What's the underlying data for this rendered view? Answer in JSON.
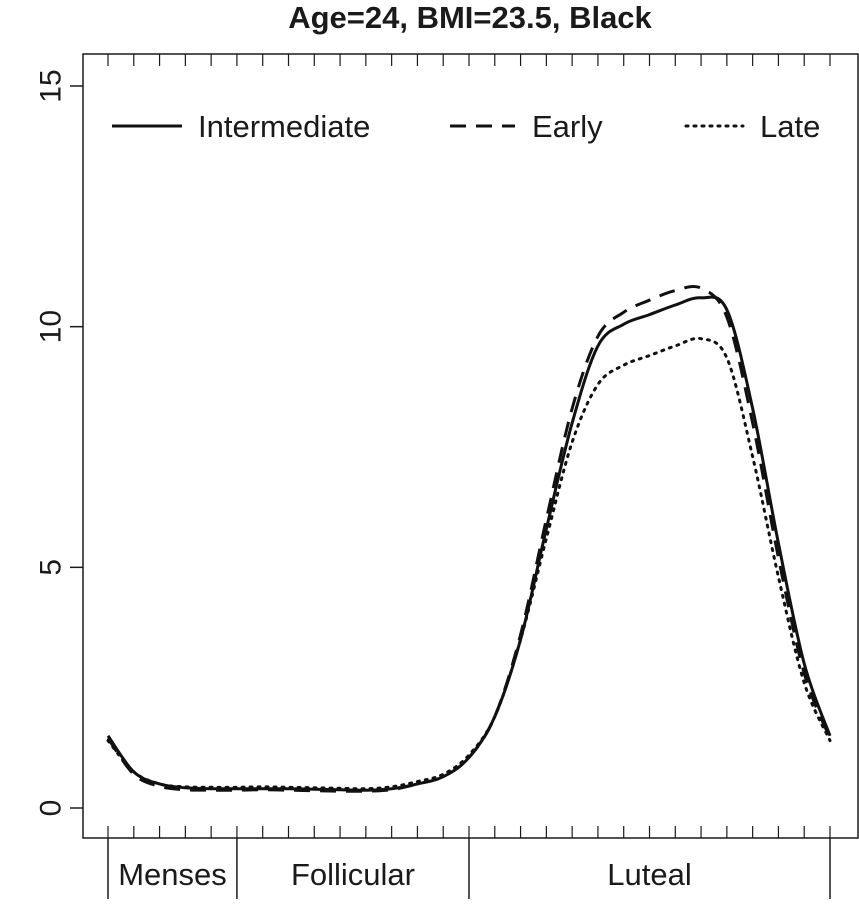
{
  "chart_data": {
    "type": "line",
    "title": "Age=24, BMI=23.5, Black",
    "xlabel": "",
    "ylabel": "",
    "ylim": [
      0,
      15
    ],
    "xlim": [
      0,
      28
    ],
    "y_ticks": [
      0,
      5,
      10,
      15
    ],
    "y_tick_labels": [
      "0",
      "5",
      "10",
      "15"
    ],
    "x_minor_ticks": [
      0,
      1,
      2,
      3,
      4,
      5,
      6,
      7,
      8,
      9,
      10,
      11,
      12,
      13,
      14,
      15,
      16,
      17,
      18,
      19,
      20,
      21,
      22,
      23,
      24,
      25,
      26,
      27,
      28
    ],
    "phases": [
      {
        "label": "Menses",
        "start": 0,
        "end": 5
      },
      {
        "label": "Follicular",
        "start": 5,
        "end": 14
      },
      {
        "label": "Luteal",
        "start": 14,
        "end": 28
      }
    ],
    "phase_boundaries": [
      0,
      5,
      14,
      28
    ],
    "legend_position": "top",
    "x": [
      0,
      1,
      2,
      3,
      4,
      5,
      6,
      7,
      8,
      9,
      10,
      11,
      12,
      13,
      14,
      15,
      16,
      17,
      18,
      19,
      20,
      21,
      22,
      23,
      24,
      25,
      26,
      27,
      28
    ],
    "series": [
      {
        "name": "Intermediate",
        "style": "solid",
        "values": [
          1.5,
          0.75,
          0.5,
          0.42,
          0.4,
          0.4,
          0.4,
          0.4,
          0.39,
          0.38,
          0.37,
          0.4,
          0.5,
          0.65,
          1.05,
          1.9,
          3.5,
          5.8,
          8.0,
          9.6,
          10.05,
          10.25,
          10.45,
          10.6,
          10.35,
          8.3,
          5.5,
          3.0,
          1.5
        ]
      },
      {
        "name": "Early",
        "style": "dashed",
        "values": [
          1.45,
          0.7,
          0.45,
          0.38,
          0.37,
          0.37,
          0.38,
          0.37,
          0.36,
          0.35,
          0.35,
          0.38,
          0.5,
          0.65,
          1.05,
          1.9,
          3.6,
          6.0,
          8.3,
          9.8,
          10.3,
          10.55,
          10.75,
          10.8,
          10.2,
          8.0,
          5.2,
          2.8,
          1.45
        ]
      },
      {
        "name": "Late",
        "style": "dotted",
        "values": [
          1.4,
          0.75,
          0.5,
          0.44,
          0.43,
          0.43,
          0.44,
          0.43,
          0.42,
          0.41,
          0.4,
          0.44,
          0.55,
          0.7,
          1.1,
          1.9,
          3.5,
          5.6,
          7.6,
          8.8,
          9.2,
          9.4,
          9.6,
          9.75,
          9.35,
          7.3,
          4.8,
          2.6,
          1.4
        ]
      }
    ],
    "grid": false
  }
}
